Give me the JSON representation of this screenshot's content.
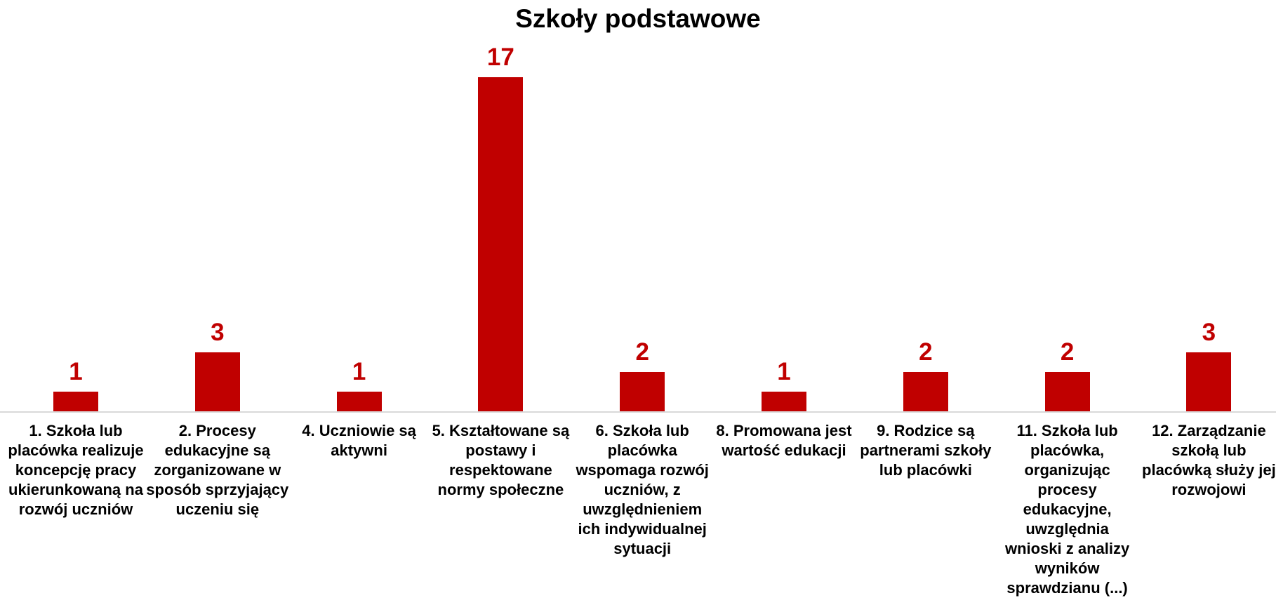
{
  "chart_data": {
    "type": "bar",
    "title": "Szkoły podstawowe",
    "categories": [
      "1. Szkoła lub placówka realizuje koncepcję pracy ukierunkowaną na rozwój uczniów",
      "2. Procesy edukacyjne są zorganizowane w sposób sprzyjający uczeniu się",
      "4. Uczniowie są aktywni",
      "5. Kształtowane są postawy i respektowane normy społeczne",
      "6. Szkoła lub placówka wspomaga rozwój uczniów, z uwzględnieniem ich indywidualnej sytuacji",
      "8. Promowana jest wartość edukacji",
      "9. Rodzice są partnerami szkoły lub placówki",
      "11. Szkoła lub placówka, organizując procesy edukacyjne, uwzględnia wnioski z analizy wyników sprawdzianu (...)",
      "12. Zarządzanie szkołą lub placówką służy jej rozwojowi"
    ],
    "values": [
      1,
      3,
      1,
      17,
      2,
      1,
      2,
      2,
      3
    ],
    "color": "#c00000"
  }
}
